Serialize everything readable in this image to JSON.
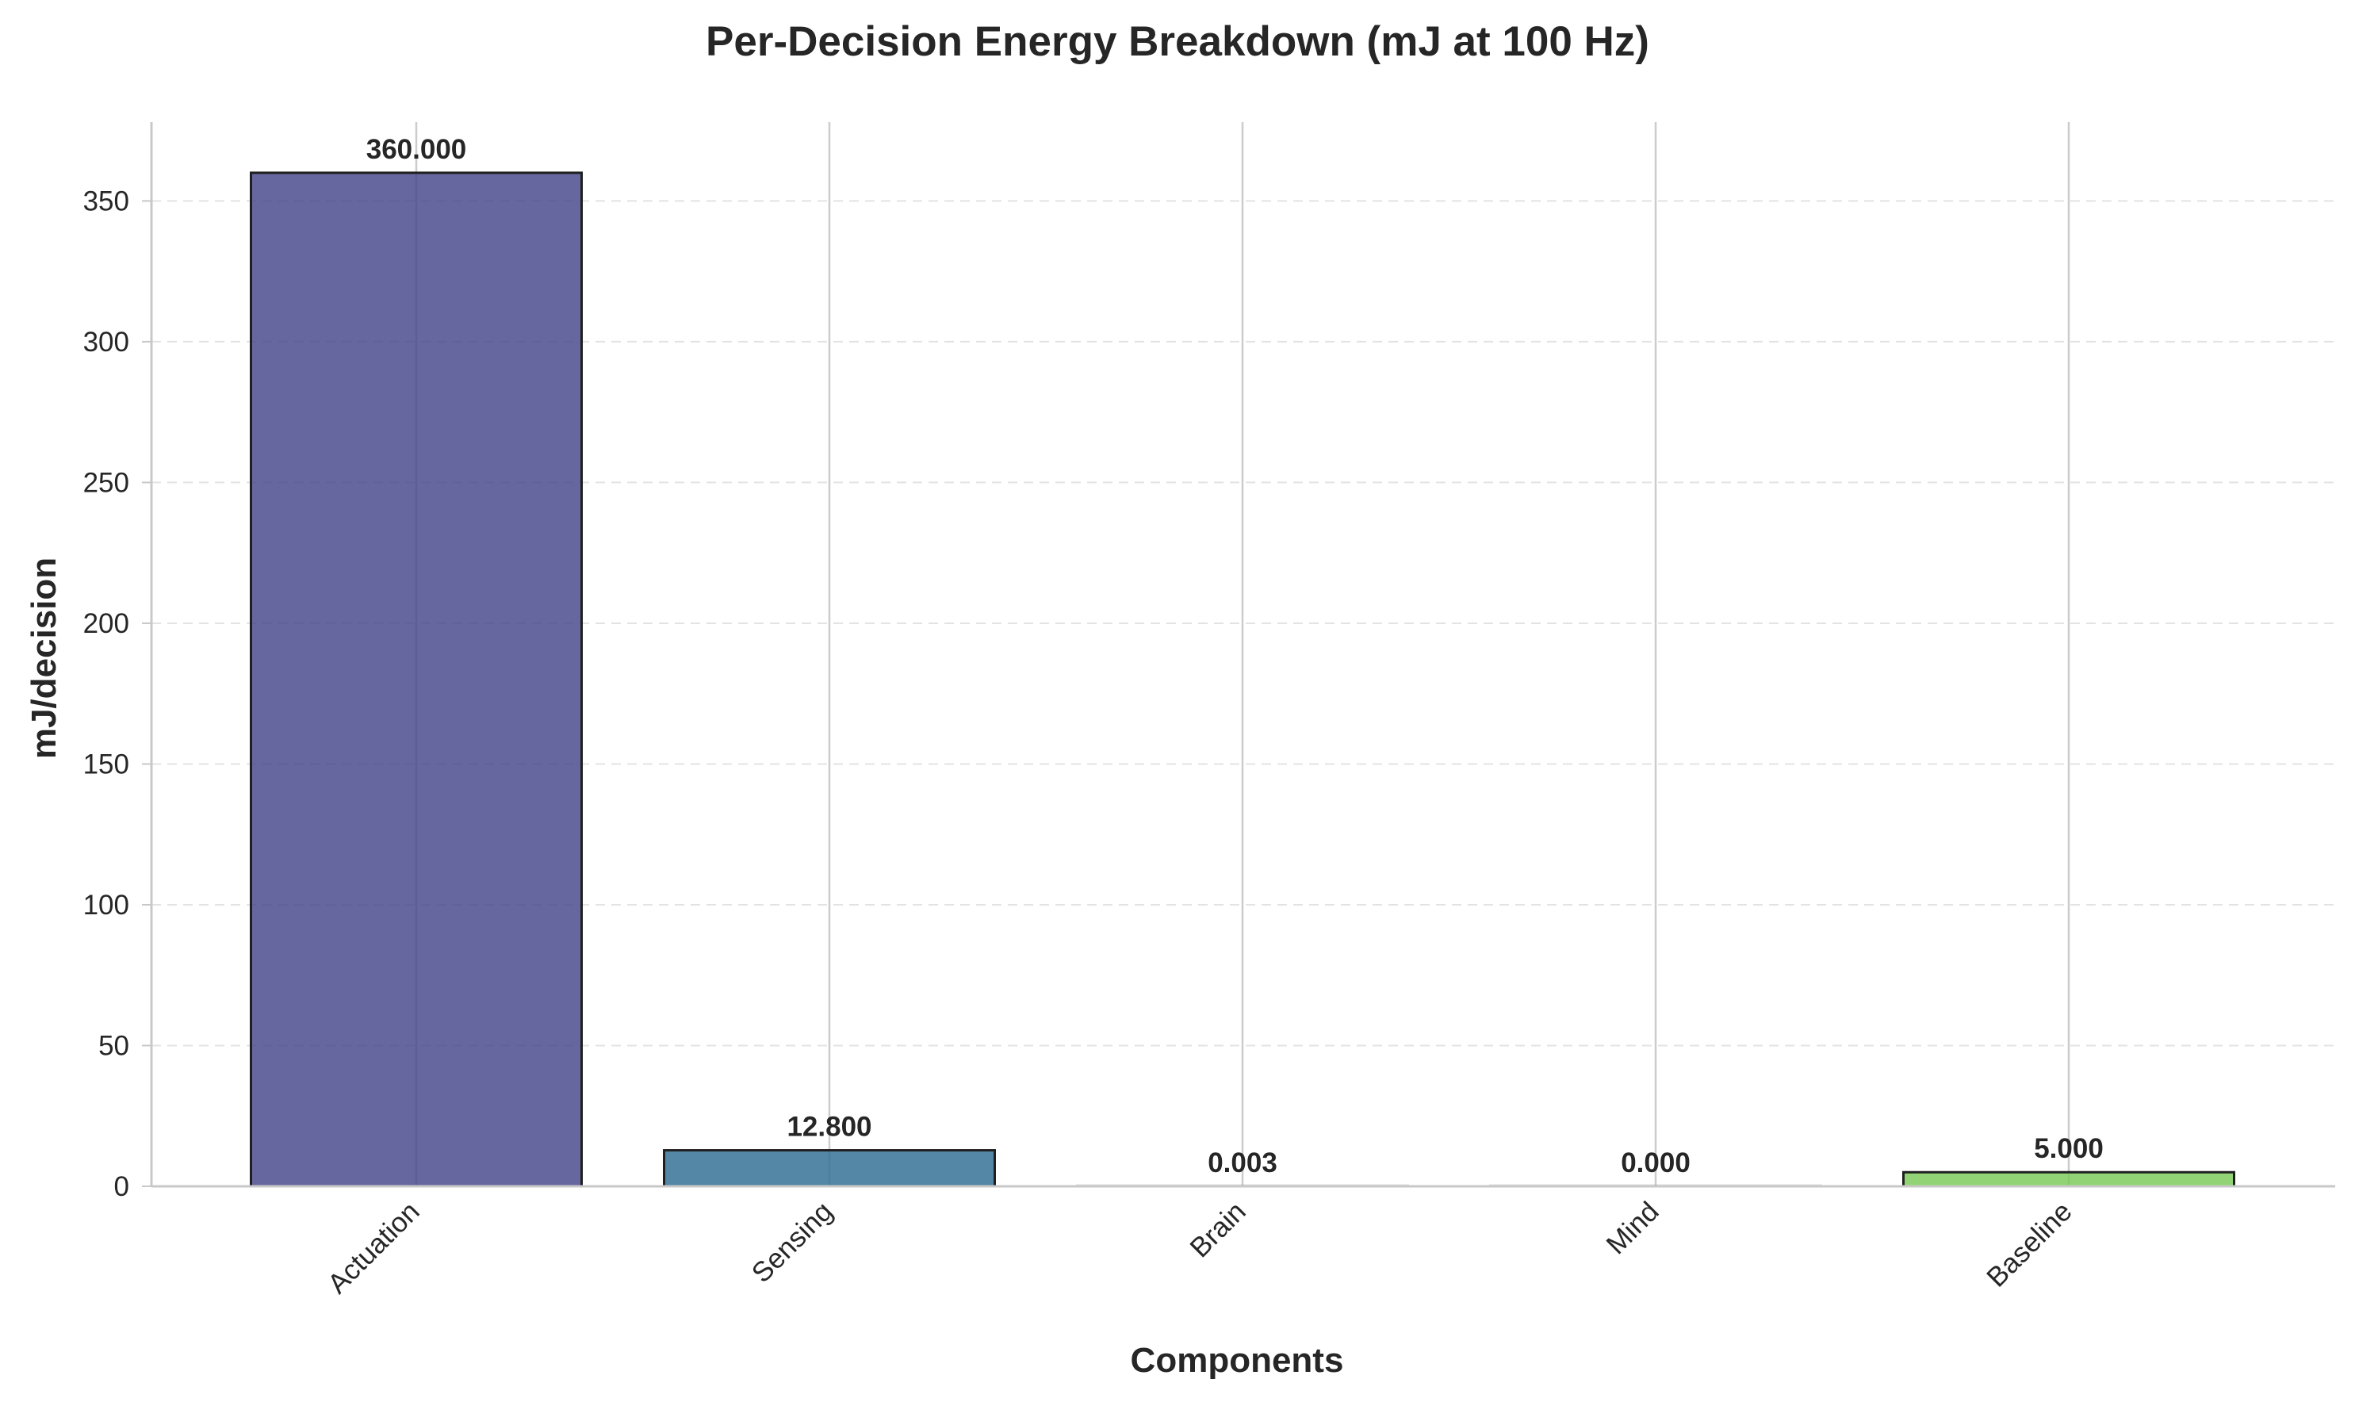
{
  "chart_data": {
    "type": "bar",
    "title": "Per-Decision Energy Breakdown (mJ at 100 Hz)",
    "xlabel": "Components",
    "ylabel": "mJ/decision",
    "categories": [
      "Actuation",
      "Sensing",
      "Brain",
      "Mind",
      "Baseline"
    ],
    "values": [
      360.0,
      12.8,
      0.003,
      0.0,
      5.0
    ],
    "value_labels": [
      "360.000",
      "12.800",
      "0.003",
      "0.000",
      "5.000"
    ],
    "bar_colors": [
      "#46468a",
      "#2e6d91",
      "#2a8c88",
      "#3aa97f",
      "#7acb57"
    ],
    "ylim": [
      0,
      378
    ],
    "yticks": [
      0,
      50,
      100,
      150,
      200,
      250,
      300,
      350
    ],
    "grid": "dashed horizontal, solid vertical at categories",
    "legend": "none"
  }
}
